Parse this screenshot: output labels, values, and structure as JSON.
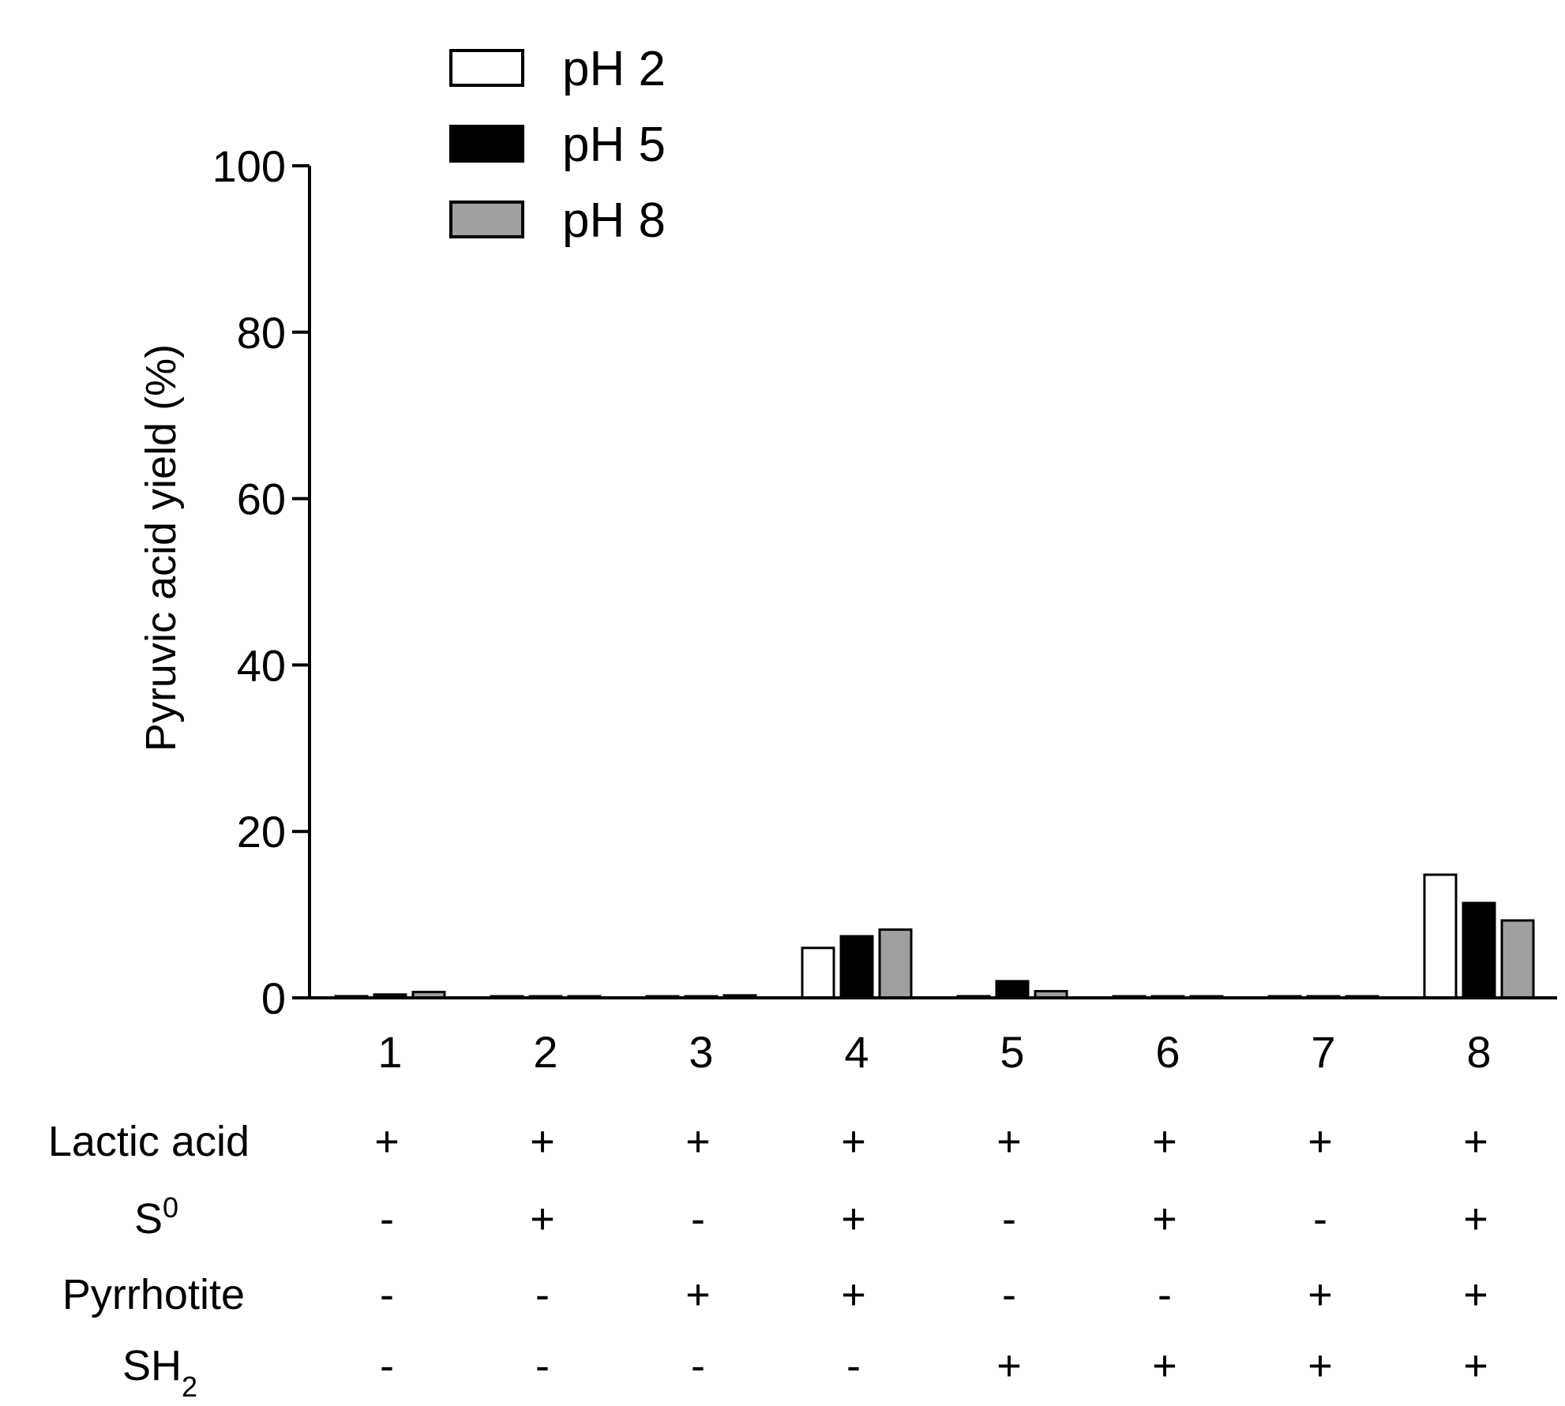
{
  "chart_data": {
    "type": "bar",
    "categories": [
      "1",
      "2",
      "3",
      "4",
      "5",
      "6",
      "7",
      "8"
    ],
    "ylabel": "Pyruvic acid yield (%)",
    "xlabel": "",
    "ylim": [
      0,
      100
    ],
    "yticks": [
      0,
      20,
      40,
      60,
      80,
      100
    ],
    "grid": false,
    "legend_position": "top-left",
    "series": [
      {
        "name": "pH 2",
        "color": "#ffffff",
        "values": [
          0.2,
          0.1,
          0.1,
          6.0,
          0.2,
          0.1,
          0.1,
          14.8
        ]
      },
      {
        "name": "pH 5",
        "color": "#000000",
        "values": [
          0.4,
          0.1,
          0.1,
          7.4,
          2.0,
          0.1,
          0.1,
          11.4
        ]
      },
      {
        "name": "pH 8",
        "color": "#a0a0a0",
        "values": [
          0.7,
          0.1,
          0.3,
          8.2,
          0.8,
          0.1,
          0.1,
          9.3
        ]
      }
    ],
    "conditions": [
      {
        "label": "Lactic acid",
        "label_sup": "",
        "label_sub": "",
        "signs": [
          "+",
          "+",
          "+",
          "+",
          "+",
          "+",
          "+",
          "+"
        ]
      },
      {
        "label": "S",
        "label_sup": "0",
        "label_sub": "",
        "signs": [
          "-",
          "+",
          "-",
          "+",
          "-",
          "+",
          "-",
          "+"
        ]
      },
      {
        "label": "Pyrrhotite",
        "label_sup": "",
        "label_sub": "",
        "signs": [
          "-",
          "-",
          "+",
          "+",
          "-",
          "-",
          "+",
          "+"
        ]
      },
      {
        "label": "SH",
        "label_sup": "",
        "label_sub": "2",
        "signs": [
          "-",
          "-",
          "-",
          "-",
          "+",
          "+",
          "+",
          "+"
        ]
      }
    ]
  }
}
